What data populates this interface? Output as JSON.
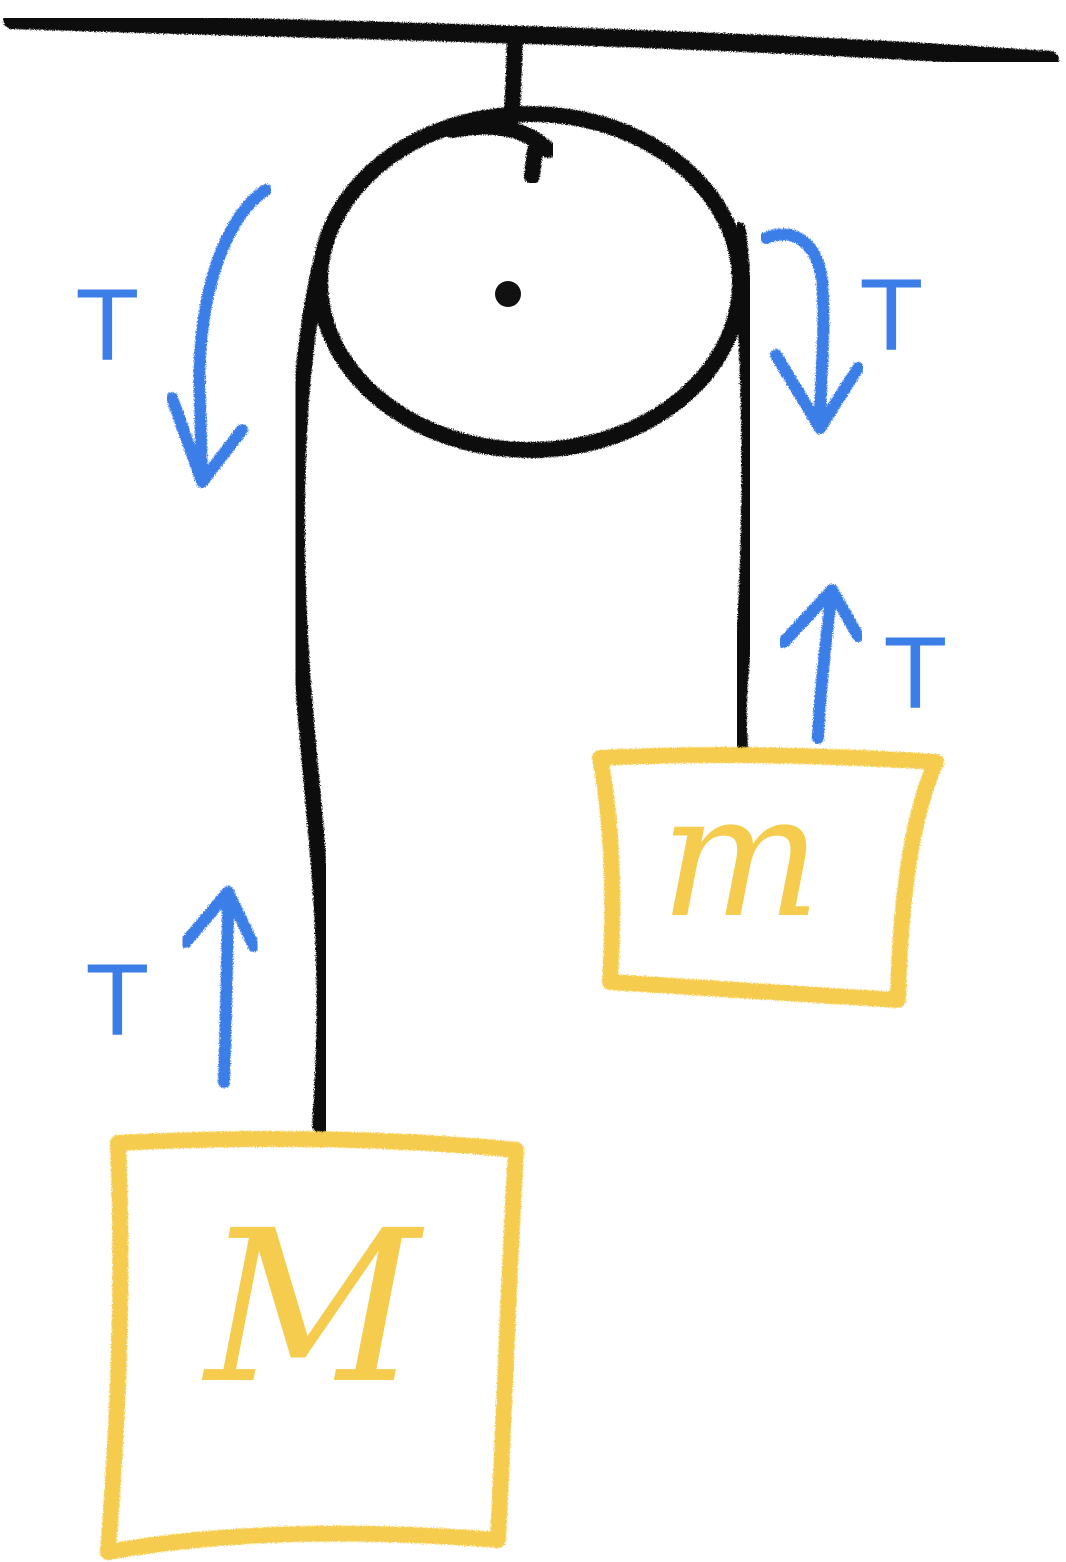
{
  "colors": {
    "rope": "#111111",
    "mass": "#f5cc4d",
    "tension": "#3b7ee8",
    "background": "#ffffff"
  },
  "labels": {
    "tension_pulley_left": "T",
    "tension_pulley_right": "T",
    "tension_mass_small": "T",
    "tension_mass_large": "T",
    "mass_large": "M",
    "mass_small": "m"
  }
}
